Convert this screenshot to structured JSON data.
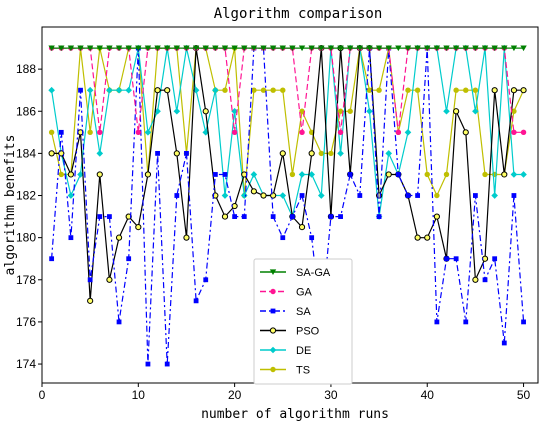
{
  "chart_data": {
    "type": "line",
    "title": "Algorithm comparison",
    "xlabel": "number of algorithm runs",
    "ylabel": "algorithm benefits",
    "xlim": [
      0,
      51.5
    ],
    "ylim": [
      173.1,
      190.0
    ],
    "x_ticks": [
      "0",
      "10",
      "20",
      "30",
      "40",
      "50"
    ],
    "y_ticks": [
      "174",
      "176",
      "178",
      "180",
      "182",
      "184",
      "186",
      "188"
    ],
    "grid": false,
    "legend_position": "lower-center",
    "x": [
      1,
      2,
      3,
      4,
      5,
      6,
      7,
      8,
      9,
      10,
      11,
      12,
      13,
      14,
      15,
      16,
      17,
      18,
      19,
      20,
      21,
      22,
      23,
      24,
      25,
      26,
      27,
      28,
      29,
      30,
      31,
      32,
      33,
      34,
      35,
      36,
      37,
      38,
      39,
      40,
      41,
      42,
      43,
      44,
      45,
      46,
      47,
      48,
      49,
      50
    ],
    "series": [
      {
        "name": "SA-GA",
        "color": "#008000",
        "marker": "triangle-down",
        "dash": "solid",
        "values": [
          189,
          189,
          189,
          189,
          189,
          189,
          189,
          189,
          189,
          189,
          189,
          189,
          189,
          189,
          189,
          189,
          189,
          189,
          189,
          189,
          189,
          189,
          189,
          189,
          189,
          189,
          189,
          189,
          189,
          189,
          189,
          189,
          189,
          189,
          189,
          189,
          189,
          189,
          189,
          189,
          189,
          189,
          189,
          189,
          189,
          189,
          189,
          189,
          189,
          189
        ]
      },
      {
        "name": "GA",
        "color": "#ff1493",
        "marker": "circle",
        "dash": "dashed",
        "values": [
          189,
          189,
          189,
          189,
          189,
          185,
          189,
          189,
          189,
          185,
          189,
          189,
          189,
          189,
          189,
          189,
          189,
          189,
          189,
          185,
          189,
          189,
          189,
          189,
          189,
          189,
          185,
          189,
          189,
          189,
          185,
          189,
          189,
          189,
          189,
          189,
          185,
          189,
          189,
          189,
          189,
          189,
          189,
          189,
          189,
          189,
          189,
          189,
          185,
          185
        ]
      },
      {
        "name": "SA",
        "color": "#0000ff",
        "marker": "square",
        "dash": "dashdot",
        "values": [
          179,
          185,
          180,
          187,
          178,
          181,
          181,
          176,
          179,
          189,
          174,
          184,
          174,
          182,
          184,
          177,
          178,
          183,
          183,
          181,
          181,
          189,
          189,
          181,
          180,
          181,
          182,
          180,
          176,
          181,
          181,
          183,
          182,
          189,
          181,
          189,
          183,
          182,
          182,
          189,
          176,
          179,
          179,
          176,
          182,
          178,
          179,
          175,
          182,
          176
        ]
      },
      {
        "name": "PSO",
        "color": "#000000",
        "marker": "circle-open",
        "dash": "solid",
        "values": [
          184,
          184,
          183,
          185,
          177,
          183,
          178,
          180,
          181,
          180.5,
          183,
          187,
          187,
          184,
          180,
          189,
          186,
          182,
          181,
          181.5,
          183,
          182.2,
          182,
          182,
          184,
          181,
          180.5,
          184,
          189,
          181,
          189,
          183,
          189,
          189,
          182,
          183,
          183,
          182,
          180,
          180,
          181,
          179,
          186,
          185,
          178,
          179,
          187,
          183,
          187,
          187
        ]
      },
      {
        "name": "DE",
        "color": "#00cccc",
        "marker": "diamond",
        "dash": "solid",
        "values": [
          187,
          184,
          182,
          183,
          187,
          184,
          187,
          187,
          187,
          189,
          185,
          186,
          189,
          186,
          189,
          187,
          185,
          187,
          182,
          186,
          182,
          183,
          182,
          182,
          182,
          181,
          183,
          183,
          182,
          189,
          184,
          189,
          189,
          186,
          181,
          184,
          183,
          185,
          189,
          189,
          189,
          186,
          189,
          189,
          186,
          189,
          182,
          189,
          183,
          183
        ]
      },
      {
        "name": "TS",
        "color": "#bfbf00",
        "marker": "circle",
        "dash": "solid",
        "values": [
          185,
          183,
          183,
          189,
          185,
          189,
          187,
          187,
          189,
          189,
          183,
          189,
          189,
          189,
          184,
          189,
          189,
          187,
          187,
          189,
          182,
          187,
          187,
          187,
          187,
          183,
          186,
          185,
          184,
          184,
          186,
          186,
          189,
          187,
          187,
          189,
          185,
          187,
          187,
          183,
          182,
          183,
          187,
          187,
          187,
          183,
          183,
          183,
          186,
          187
        ]
      }
    ]
  }
}
